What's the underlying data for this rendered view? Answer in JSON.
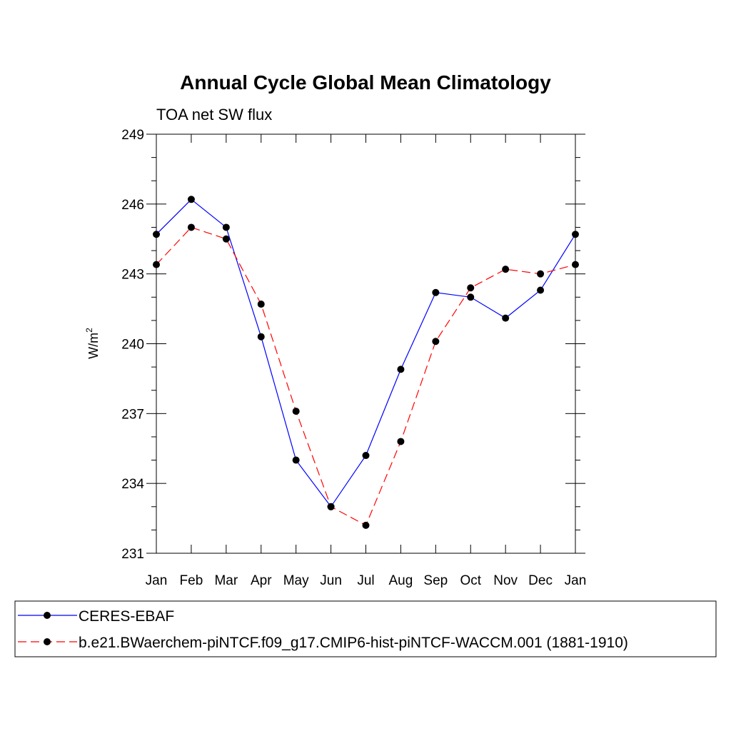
{
  "chart_data": {
    "type": "line",
    "title": "Annual Cycle Global Mean Climatology",
    "subtitle": "TOA net SW flux",
    "xlabel": "",
    "ylabel_main": "W/m",
    "ylabel_sup": "2",
    "categories": [
      "Jan",
      "Feb",
      "Mar",
      "Apr",
      "May",
      "Jun",
      "Jul",
      "Aug",
      "Sep",
      "Oct",
      "Nov",
      "Dec",
      "Jan"
    ],
    "ylim": [
      231,
      249
    ],
    "yticks": [
      231,
      234,
      237,
      240,
      243,
      246,
      249
    ],
    "grid": false,
    "legend_position": "bottom",
    "series": [
      {
        "name": "CERES-EBAF",
        "color": "#0000ff",
        "dash": "solid",
        "marker": "circle",
        "values": [
          244.7,
          246.2,
          245.0,
          240.3,
          235.0,
          233.0,
          235.2,
          238.9,
          242.2,
          242.0,
          241.1,
          242.3,
          244.7
        ]
      },
      {
        "name": "b.e21.BWaerchem-piNTCF.f09_g17.CMIP6-hist-piNTCF-WACCM.001 (1881-1910)",
        "color": "#ff0000",
        "dash": "dashed",
        "marker": "circle",
        "values": [
          243.4,
          245.0,
          244.5,
          241.7,
          237.1,
          233.0,
          232.2,
          235.8,
          240.1,
          242.4,
          243.2,
          243.0,
          243.4
        ]
      }
    ]
  }
}
